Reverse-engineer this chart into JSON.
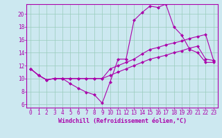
{
  "background_color": "#cce8f0",
  "grid_color": "#99ccbb",
  "line_color": "#aa00aa",
  "marker": "D",
  "markersize": 2,
  "linewidth": 0.8,
  "xlabel": "Windchill (Refroidissement éolien,°C)",
  "xlabel_fontsize": 6,
  "tick_fontsize": 5.5,
  "xlim": [
    -0.5,
    23.5
  ],
  "ylim": [
    5.5,
    21.5
  ],
  "yticks": [
    6,
    8,
    10,
    12,
    14,
    16,
    18,
    20
  ],
  "series": [
    [
      11.5,
      10.5,
      9.8,
      10.0,
      10.0,
      9.2,
      8.5,
      7.9,
      7.5,
      6.2,
      9.5,
      13.0,
      13.0,
      19.0,
      20.2,
      21.2,
      21.0,
      21.5,
      18.0,
      16.7,
      14.5,
      14.0,
      12.5,
      12.5
    ],
    [
      11.5,
      10.5,
      9.8,
      10.0,
      10.0,
      10.0,
      10.0,
      10.0,
      10.0,
      10.0,
      11.5,
      12.0,
      12.5,
      13.0,
      13.8,
      14.5,
      14.8,
      15.2,
      15.5,
      15.8,
      16.2,
      16.5,
      16.8,
      12.8
    ],
    [
      11.5,
      10.5,
      9.8,
      10.0,
      10.0,
      10.0,
      10.0,
      10.0,
      10.0,
      10.0,
      10.5,
      11.0,
      11.5,
      12.0,
      12.5,
      13.0,
      13.3,
      13.6,
      14.0,
      14.3,
      14.7,
      15.0,
      13.0,
      12.8
    ]
  ],
  "x": [
    0,
    1,
    2,
    3,
    4,
    5,
    6,
    7,
    8,
    9,
    10,
    11,
    12,
    13,
    14,
    15,
    16,
    17,
    18,
    19,
    20,
    21,
    22,
    23
  ]
}
